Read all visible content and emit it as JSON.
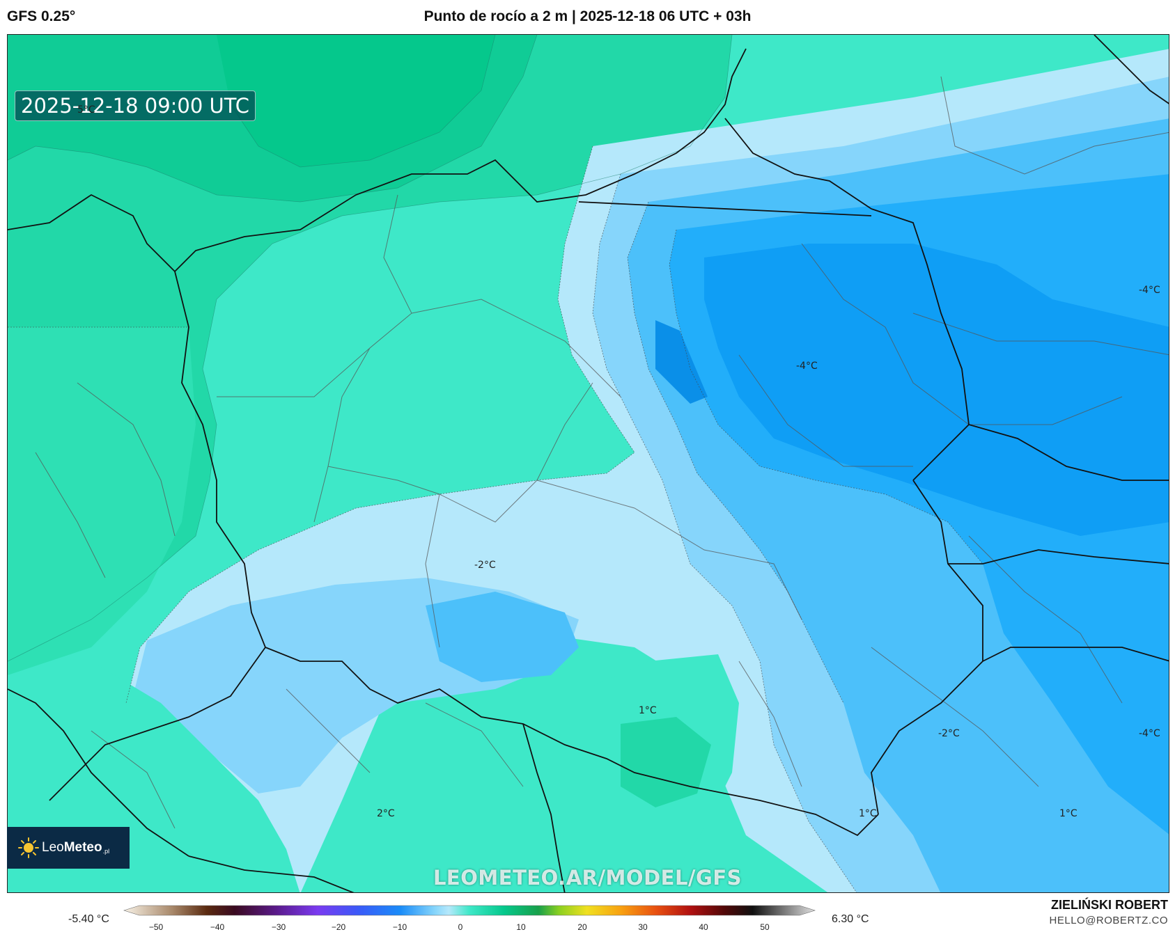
{
  "header": {
    "model": "GFS 0.25°",
    "title": "Punto de rocío a 2 m | 2025-12-18 06 UTC + 03h"
  },
  "map": {
    "valid_time": "2025-12-18 09:00 UTC",
    "contour_labels": [
      {
        "text": "5°C"
      },
      {
        "text": "-4°C"
      },
      {
        "text": "-4°C"
      },
      {
        "text": "-2°C"
      },
      {
        "text": "1°C"
      },
      {
        "text": "-2°C"
      },
      {
        "text": "-4°C"
      },
      {
        "text": "2°C"
      },
      {
        "text": "1°C"
      },
      {
        "text": "1°C"
      }
    ],
    "watermark": "LEOMETEO.AR/MODEL/GFS"
  },
  "logo": {
    "prefix": "Leo",
    "bold": "Meteo",
    "suffix": ".pl"
  },
  "colorbar": {
    "min_label": "-5.40 °C",
    "max_label": "6.30 °C",
    "ticks": [
      "−50",
      "−40",
      "−30",
      "−20",
      "−10",
      "0",
      "10",
      "20",
      "30",
      "40",
      "50"
    ]
  },
  "credits": {
    "author": "ZIELIŃSKI ROBERT",
    "email": "HELLO@ROBERTZ.CO"
  }
}
